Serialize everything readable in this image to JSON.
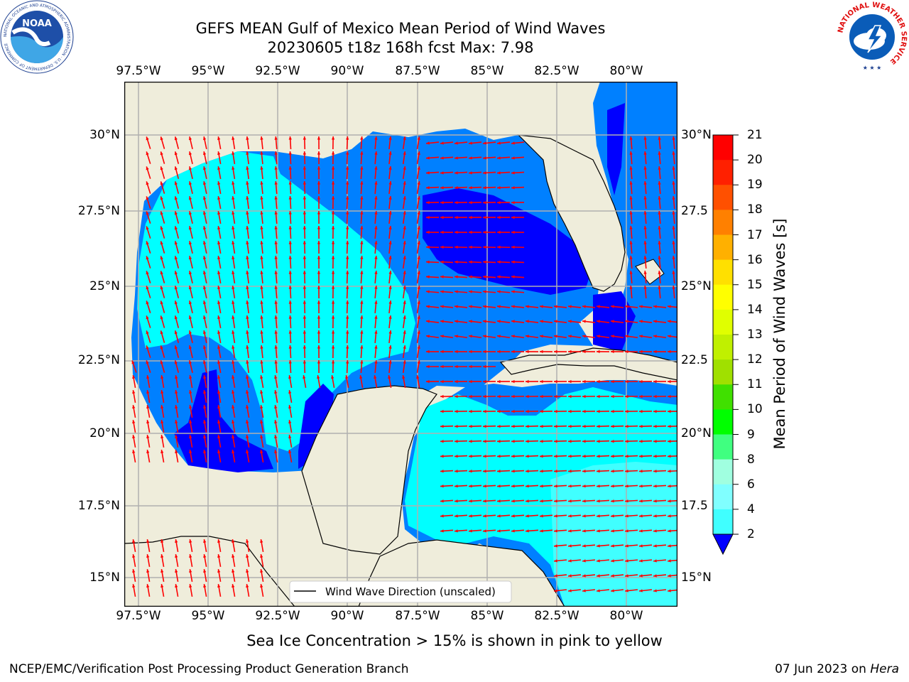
{
  "title": {
    "line1": "GEFS MEAN Gulf of Mexico Mean Period of Wind Waves",
    "line2": "20230605 t18z 168h fcst   Max: 7.98"
  },
  "axes": {
    "lon_labels": [
      "97.5°W",
      "95°W",
      "92.5°W",
      "90°W",
      "87.5°W",
      "85°W",
      "82.5°W",
      "80°W"
    ],
    "lat_labels_left": [
      "30°N",
      "27.5°N",
      "25°N",
      "22.5°N",
      "20°N",
      "17.5°N",
      "15°N"
    ],
    "lat_labels_right": [
      "30°N",
      "27.5",
      "25°N",
      "22.5",
      "20°N",
      "17.5",
      "15°N"
    ]
  },
  "legend": {
    "label": "Wind Wave Direction (unscaled)"
  },
  "colorbar": {
    "title": "Mean Period of Wind Waves [s]",
    "ticks": [
      "2",
      "4",
      "6",
      "8",
      "9",
      "10",
      "11",
      "12",
      "13",
      "14",
      "15",
      "16",
      "17",
      "18",
      "19",
      "20",
      "21"
    ],
    "colors": [
      "#0000ff",
      "#0080ff",
      "#00ffff",
      "#40ffff",
      "#80ffff",
      "#a0ffe0",
      "#40ff80",
      "#00ff00",
      "#40e000",
      "#a0e000",
      "#c0f000",
      "#e0ff00",
      "#ffff00",
      "#ffe000",
      "#ffb000",
      "#ff8000",
      "#ff5000",
      "#ff2000",
      "#ff0000"
    ]
  },
  "map_colors": {
    "land": "#efeddb",
    "period_2_4": "#0080ff",
    "period_below_2": "#0000ff",
    "period_4_6": "#00ffff",
    "period_6_8": "#40ffff",
    "arrows": "#ff0000",
    "grid": "#b0b0b0"
  },
  "ice_note": "Sea Ice Concentration > 15% is shown in pink to yellow",
  "footer": {
    "left": "NCEP/EMC/Verification Post Processing Product Generation Branch",
    "date": "07 Jun 2023 on ",
    "machine": "Hera"
  },
  "logos": {
    "noaa": "NOAA",
    "noaa_ring": "NATIONAL OCEANIC AND ATMOSPHERIC ADMINISTRATION · U.S. DEPARTMENT OF COMMERCE",
    "nws_ring": "NATIONAL WEATHER SERVICE"
  }
}
